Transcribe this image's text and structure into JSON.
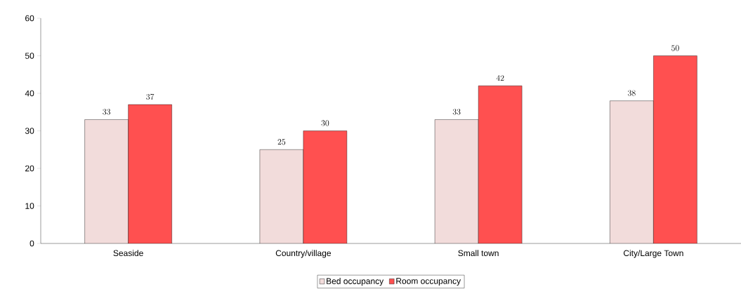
{
  "chart_data": {
    "type": "bar",
    "categories": [
      "Seaside",
      "Country/village",
      "Small town",
      "City/Large Town"
    ],
    "series": [
      {
        "name": "Bed occupancy",
        "color": "#f2dcdb",
        "values": [
          33,
          25,
          33,
          38
        ]
      },
      {
        "name": "Room occupancy",
        "color": "#ff5050",
        "values": [
          37,
          30,
          42,
          50
        ]
      }
    ],
    "ylim": [
      0,
      60
    ],
    "yticks": [
      0,
      10,
      20,
      30,
      40,
      50,
      60
    ],
    "data_labels": true,
    "legend": "bottom",
    "grid": false
  }
}
